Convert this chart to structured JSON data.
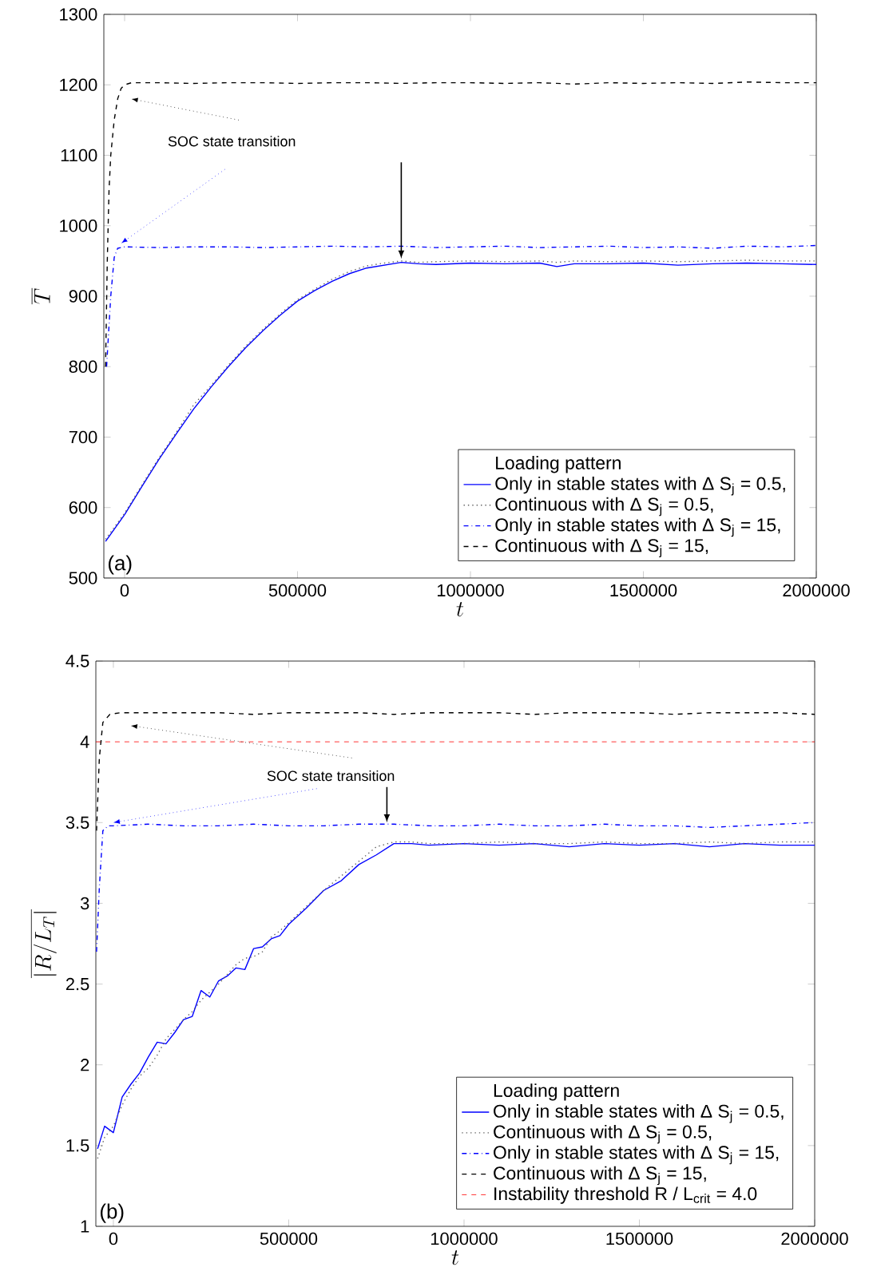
{
  "chart_data": [
    {
      "type": "line",
      "xlabel": "t",
      "ylabel": "\\overline{T}",
      "legend_title": "Loading pattern",
      "legend": "bottom right",
      "xlim": [
        -60000,
        2000000
      ],
      "ylim": [
        500,
        1300
      ],
      "xticks": [
        0,
        500000,
        1000000,
        1500000,
        2000000
      ],
      "yticks": [
        500,
        600,
        700,
        800,
        900,
        1000,
        1100,
        1200,
        1300
      ],
      "annotations": [
        "SOC state transition",
        "(a)"
      ],
      "series": [
        {
          "name": "Only in stable states with Δ S$_{j}$ = 0.5,",
          "color": "#0000ff",
          "line_style": "solid",
          "x": [
            -55000,
            0,
            50000,
            100000,
            150000,
            200000,
            250000,
            300000,
            350000,
            400000,
            450000,
            500000,
            550000,
            600000,
            650000,
            700000,
            750000,
            800000,
            850000,
            900000,
            1000000,
            1100000,
            1200000,
            1250000,
            1300000,
            1400000,
            1500000,
            1600000,
            1700000,
            1800000,
            1900000,
            2000000
          ],
          "values": [
            552,
            590,
            630,
            669,
            705,
            740,
            771,
            800,
            827,
            851,
            873,
            893,
            908,
            921,
            932,
            940,
            944,
            948,
            946,
            945,
            947,
            946,
            947,
            942,
            946,
            946,
            947,
            944,
            946,
            947,
            946,
            945
          ]
        },
        {
          "name": "Continuous with Δ S$_{j}$ = 0.5,",
          "color": "#606060",
          "line_style": "dotted",
          "x": [
            -55000,
            0,
            50000,
            100000,
            150000,
            200000,
            250000,
            300000,
            350000,
            400000,
            450000,
            500000,
            550000,
            600000,
            650000,
            700000,
            750000,
            800000,
            850000,
            900000,
            1000000,
            1100000,
            1200000,
            1250000,
            1300000,
            1400000,
            1500000,
            1600000,
            1700000,
            1800000,
            1900000,
            2000000
          ],
          "values": [
            555,
            592,
            632,
            671,
            707,
            746,
            773,
            802,
            829,
            853,
            875,
            895,
            910,
            924,
            935,
            943,
            947,
            950,
            948,
            949,
            950,
            949,
            950,
            948,
            950,
            949,
            950,
            949,
            950,
            951,
            950,
            950
          ]
        },
        {
          "name": "Only in stable states with Δ S$_{j}$ = 15,",
          "color": "#0000ff",
          "line_style": "dashdot",
          "x": [
            -52000,
            -40000,
            -30000,
            -20000,
            0,
            100000,
            200000,
            300000,
            400000,
            500000,
            600000,
            700000,
            800000,
            900000,
            1000000,
            1100000,
            1200000,
            1300000,
            1400000,
            1500000,
            1600000,
            1700000,
            1800000,
            1900000,
            2000000
          ],
          "values": [
            800,
            900,
            955,
            968,
            970,
            969,
            970,
            970,
            969,
            970,
            971,
            970,
            971,
            969,
            970,
            971,
            969,
            970,
            971,
            969,
            970,
            968,
            971,
            970,
            972
          ]
        },
        {
          "name": "Continuous with Δ S$_{j}$ = 15,",
          "color": "#000000",
          "line_style": "dashed",
          "x": [
            -55000,
            -50000,
            -45000,
            -40000,
            -30000,
            -20000,
            -10000,
            0,
            20000,
            100000,
            200000,
            300000,
            400000,
            500000,
            600000,
            700000,
            800000,
            900000,
            1000000,
            1100000,
            1200000,
            1300000,
            1400000,
            1500000,
            1600000,
            1700000,
            1800000,
            1900000,
            2000000
          ],
          "values": [
            800,
            950,
            1050,
            1100,
            1150,
            1180,
            1195,
            1200,
            1203,
            1203,
            1202,
            1203,
            1203,
            1202,
            1203,
            1203,
            1202,
            1203,
            1203,
            1202,
            1203,
            1201,
            1203,
            1202,
            1203,
            1202,
            1204,
            1203,
            1203
          ]
        }
      ]
    },
    {
      "type": "line",
      "xlabel": "t",
      "ylabel": "\\overline{|R/L_T|}",
      "legend_title": "Loading pattern",
      "legend": "bottom right",
      "xlim": [
        -50000,
        2000000
      ],
      "ylim": [
        1,
        4.5
      ],
      "xticks": [
        0,
        500000,
        1000000,
        1500000,
        2000000
      ],
      "yticks": [
        1,
        1.5,
        2,
        2.5,
        3,
        3.5,
        4,
        4.5
      ],
      "annotations": [
        {
          "text": "SOC state transition",
          "x": 0,
          "y": 3.5
        },
        "(b)"
      ],
      "ref_lines": [
        {
          "axis": "y",
          "value": 4,
          "label": "Instability threshold R / L$_{crit}$ = 4.0",
          "color": "#ff0000",
          "line_style": "dashed"
        }
      ],
      "series": [
        {
          "name": "Only in stable states with Δ S$_{j}$ = 0.5,",
          "color": "#0000ff",
          "line_style": "solid",
          "x": [
            -45000,
            -25000,
            0,
            25000,
            50000,
            75000,
            100000,
            125000,
            150000,
            175000,
            200000,
            225000,
            250000,
            275000,
            300000,
            325000,
            350000,
            375000,
            400000,
            425000,
            450000,
            475000,
            500000,
            550000,
            600000,
            650000,
            700000,
            750000,
            800000,
            850000,
            900000,
            1000000,
            1100000,
            1200000,
            1300000,
            1400000,
            1500000,
            1600000,
            1700000,
            1800000,
            1900000,
            2000000
          ],
          "values": [
            1.48,
            1.62,
            1.58,
            1.8,
            1.88,
            1.95,
            2.05,
            2.14,
            2.13,
            2.2,
            2.28,
            2.3,
            2.46,
            2.42,
            2.52,
            2.55,
            2.6,
            2.59,
            2.72,
            2.73,
            2.78,
            2.8,
            2.87,
            2.97,
            3.08,
            3.14,
            3.24,
            3.3,
            3.37,
            3.37,
            3.36,
            3.37,
            3.36,
            3.37,
            3.35,
            3.37,
            3.36,
            3.37,
            3.35,
            3.37,
            3.36,
            3.36
          ]
        },
        {
          "name": "Continuous with Δ S$_{j}$ = 0.5,",
          "color": "#606060",
          "line_style": "dotted",
          "x": [
            -45000,
            -25000,
            0,
            25000,
            50000,
            75000,
            100000,
            125000,
            150000,
            175000,
            200000,
            225000,
            250000,
            275000,
            300000,
            325000,
            350000,
            375000,
            400000,
            425000,
            450000,
            475000,
            500000,
            550000,
            600000,
            650000,
            700000,
            750000,
            800000,
            850000,
            900000,
            1000000,
            1100000,
            1200000,
            1300000,
            1400000,
            1500000,
            1600000,
            1700000,
            1800000,
            1900000,
            2000000
          ],
          "values": [
            1.42,
            1.55,
            1.62,
            1.75,
            1.85,
            1.93,
            1.98,
            2.06,
            2.16,
            2.22,
            2.28,
            2.33,
            2.4,
            2.45,
            2.5,
            2.56,
            2.62,
            2.66,
            2.67,
            2.7,
            2.79,
            2.83,
            2.88,
            2.98,
            3.08,
            3.17,
            3.26,
            3.35,
            3.38,
            3.38,
            3.37,
            3.37,
            3.38,
            3.37,
            3.37,
            3.38,
            3.37,
            3.37,
            3.38,
            3.37,
            3.38,
            3.38
          ]
        },
        {
          "name": "Only in stable states with Δ S$_{j}$ = 15,",
          "color": "#0000ff",
          "line_style": "dashdot",
          "x": [
            -48000,
            -40000,
            -30000,
            -15000,
            0,
            100000,
            200000,
            300000,
            400000,
            500000,
            600000,
            700000,
            800000,
            900000,
            1000000,
            1100000,
            1200000,
            1300000,
            1400000,
            1500000,
            1600000,
            1700000,
            1800000,
            1900000,
            2000000
          ],
          "values": [
            2.7,
            3.1,
            3.45,
            3.48,
            3.48,
            3.49,
            3.48,
            3.48,
            3.49,
            3.48,
            3.48,
            3.49,
            3.49,
            3.48,
            3.48,
            3.49,
            3.48,
            3.48,
            3.49,
            3.48,
            3.48,
            3.47,
            3.48,
            3.49,
            3.5
          ]
        },
        {
          "name": "Continuous with Δ S$_{j}$ = 15,",
          "color": "#000000",
          "line_style": "dashed",
          "x": [
            -48000,
            -40000,
            -30000,
            -10000,
            20000,
            100000,
            200000,
            300000,
            400000,
            500000,
            600000,
            700000,
            800000,
            900000,
            1000000,
            1100000,
            1200000,
            1300000,
            1400000,
            1500000,
            1600000,
            1700000,
            1800000,
            1900000,
            2000000
          ],
          "values": [
            3.45,
            3.9,
            4.12,
            4.17,
            4.18,
            4.18,
            4.18,
            4.18,
            4.17,
            4.18,
            4.18,
            4.18,
            4.17,
            4.18,
            4.18,
            4.18,
            4.17,
            4.18,
            4.18,
            4.18,
            4.17,
            4.18,
            4.18,
            4.18,
            4.17
          ]
        }
      ]
    }
  ]
}
